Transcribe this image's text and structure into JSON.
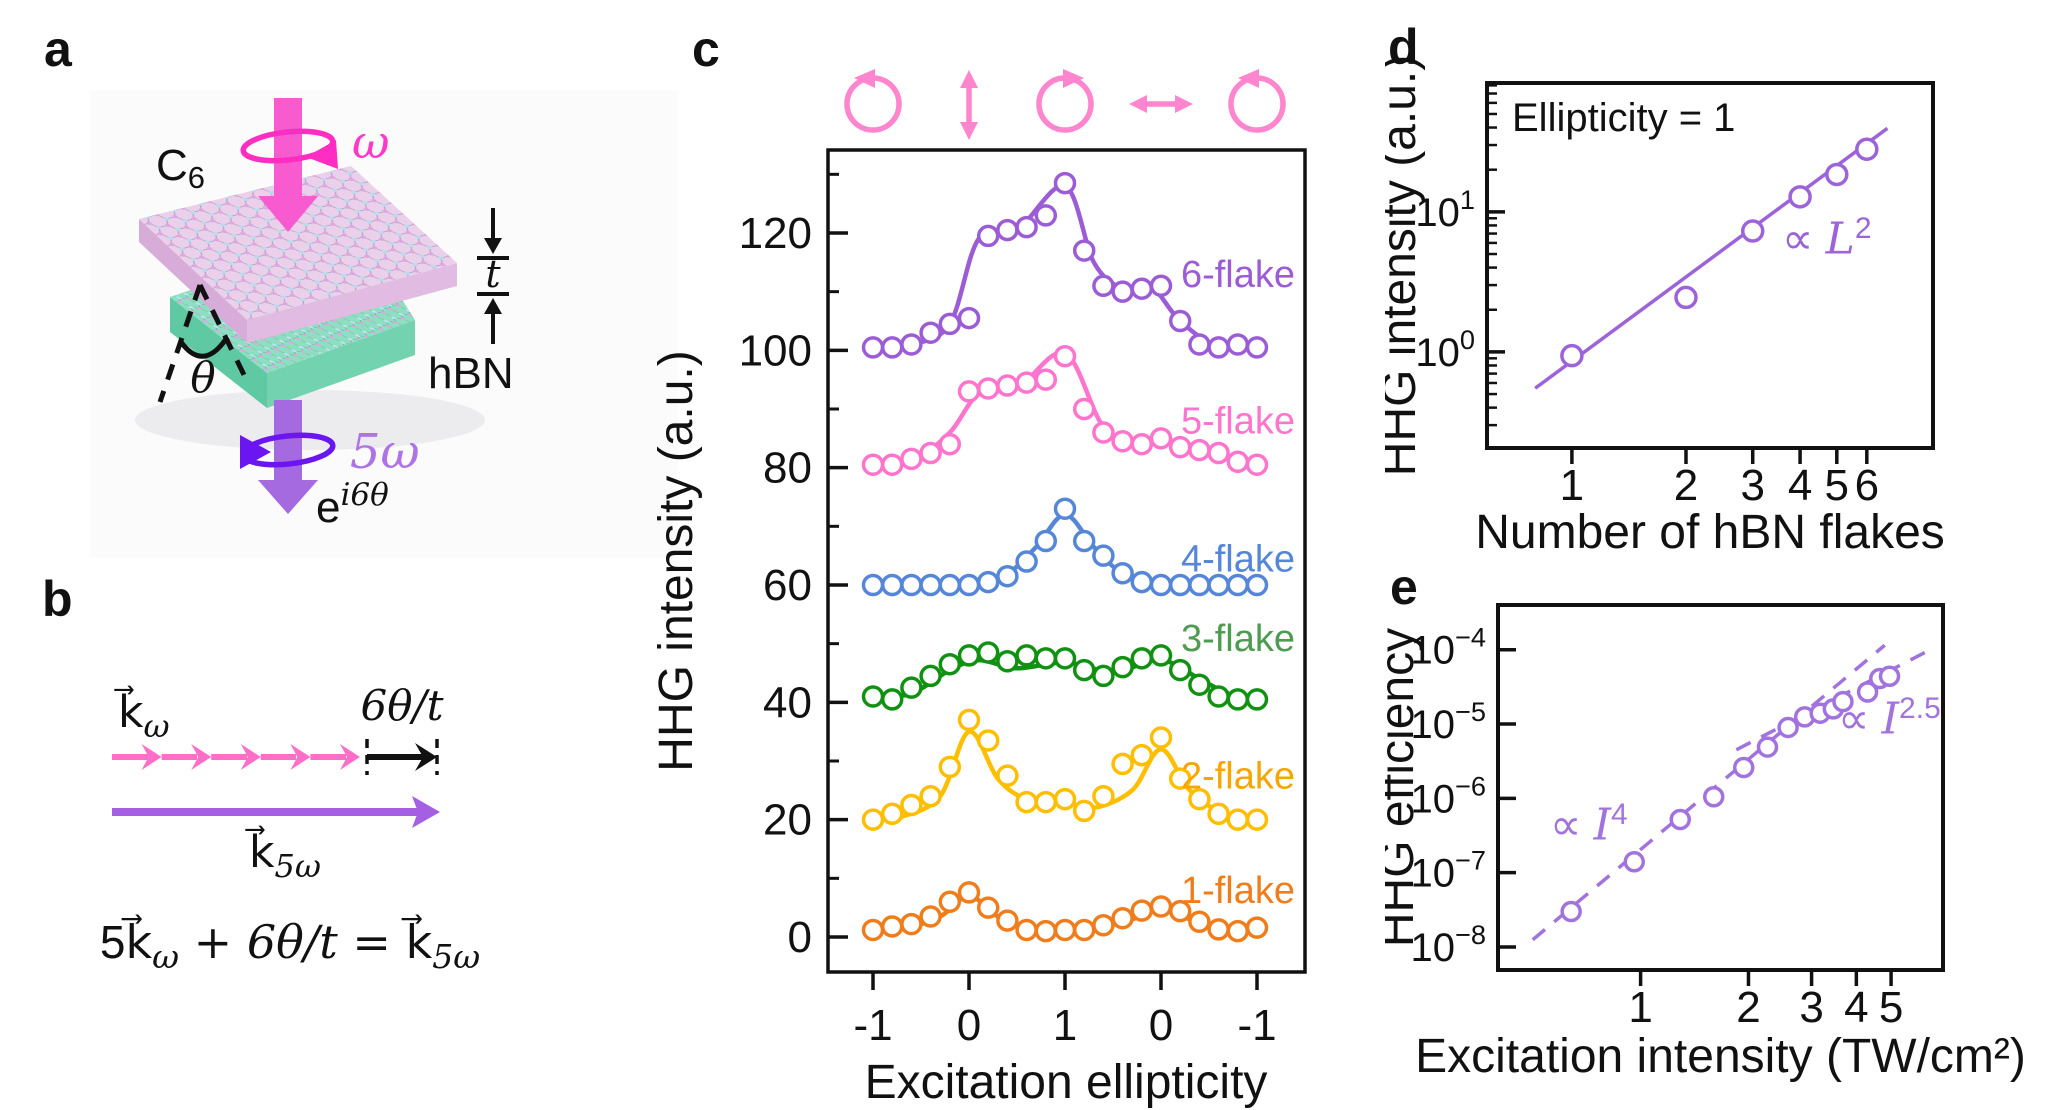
{
  "figure": {
    "panels": {
      "a": "a",
      "b": "b",
      "c": "c",
      "d": "d",
      "e": "e"
    }
  },
  "panel_a": {
    "c6_main": "C",
    "c6_sub": "6",
    "hbn_label": "hBN",
    "omega_label": "ω",
    "five_omega_label": "5ω",
    "phase_base": "e",
    "phase_sup": "i6θ",
    "theta_label": "θ",
    "thickness_label": "t",
    "colors": {
      "pump_pink": "#F75BCF",
      "loop_pink": "#FF2DC2",
      "omega_text": "#FF38C8",
      "slab_pink_top": "#EBD0EB",
      "slab_pink_left": "#D8ACD8",
      "slab_pink_right": "#E2BBE2",
      "slab_teal_top": "#8EDEC1",
      "slab_teal_left": "#5FC9A3",
      "slab_teal_right": "#73D2AF",
      "harmonic_purple": "#A569E0",
      "loop_purple": "#6B15F0",
      "five_omega_text": "#AE74E6",
      "atom_blue": "#B7DCF2",
      "atom_purple": "#DCA8E4",
      "bond_gray": "#8d8290"
    }
  },
  "panel_b": {
    "k_omega_base": "k⃗",
    "k_omega_sub": "ω",
    "k5_base": "k⃗",
    "k5_sub": "5ω",
    "phase_label": "6θ/t",
    "eq_p1": "5k⃗",
    "eq_s1": "ω",
    "eq_p2": " + 6θ/t = ",
    "eq_p3": "k⃗",
    "eq_s2": "5ω",
    "colors": {
      "k_pink": "#FF6EC7",
      "k_purple": "#A55FE3",
      "black": "#111111"
    }
  },
  "chart_data": [
    {
      "type": "line",
      "panel": "c",
      "xlabel": "Excitation ellipticity",
      "ylabel": "HHG intensity (a.u.)",
      "x_ticks": [
        {
          "u": 0,
          "label": "-1"
        },
        {
          "u": 1,
          "label": "0"
        },
        {
          "u": 2,
          "label": "1"
        },
        {
          "u": 3,
          "label": "0"
        },
        {
          "u": 4,
          "label": "-1"
        }
      ],
      "y_ticks": [
        0,
        20,
        40,
        60,
        80,
        100,
        120
      ],
      "y_minor": [
        10,
        30,
        50,
        70,
        90,
        110,
        130
      ],
      "ylim": [
        -6,
        134
      ],
      "icon_color": "#FF85CF",
      "polarization_icons": [
        "circular-left-icon",
        "linear-vertical-icon",
        "circular-right-icon",
        "linear-horizontal-icon",
        "circular-left-icon"
      ],
      "series": [
        {
          "name": "1-flake",
          "color": "#F07D1C",
          "label_color": "#F07D1C",
          "label_v": 8,
          "circles": [
            [
              0,
              1.2
            ],
            [
              0.2,
              1.8
            ],
            [
              0.4,
              2.2
            ],
            [
              0.6,
              3.5
            ],
            [
              0.8,
              6
            ],
            [
              1.0,
              7.6
            ],
            [
              1.2,
              5
            ],
            [
              1.4,
              2.8
            ],
            [
              1.6,
              1.2
            ],
            [
              1.8,
              1
            ],
            [
              2.0,
              1.2
            ],
            [
              2.2,
              1.2
            ],
            [
              2.4,
              2
            ],
            [
              2.6,
              3.2
            ],
            [
              2.8,
              4.5
            ],
            [
              3.0,
              5.2
            ],
            [
              3.2,
              4.4
            ],
            [
              3.4,
              2.6
            ],
            [
              3.6,
              1.3
            ],
            [
              3.8,
              1
            ],
            [
              4.0,
              1.6
            ]
          ],
          "curve": [
            [
              0,
              1
            ],
            [
              0.3,
              1.3
            ],
            [
              0.7,
              3.5
            ],
            [
              1.0,
              7
            ],
            [
              1.3,
              3.5
            ],
            [
              1.7,
              1.2
            ],
            [
              2.0,
              1
            ],
            [
              2.3,
              1.3
            ],
            [
              2.7,
              3
            ],
            [
              3.0,
              5
            ],
            [
              3.3,
              3
            ],
            [
              3.7,
              1.2
            ],
            [
              4.0,
              1.1
            ]
          ]
        },
        {
          "name": "2-flake",
          "color": "#FFBE00",
          "label_color": "#F7A600",
          "label_v": 27.5,
          "circles": [
            [
              0,
              20
            ],
            [
              0.2,
              21
            ],
            [
              0.4,
              22.5
            ],
            [
              0.6,
              24
            ],
            [
              0.8,
              29
            ],
            [
              1.0,
              37
            ],
            [
              1.2,
              33.5
            ],
            [
              1.4,
              27.5
            ],
            [
              1.6,
              23
            ],
            [
              1.8,
              23
            ],
            [
              2.0,
              23.5
            ],
            [
              2.2,
              21.5
            ],
            [
              2.4,
              24
            ],
            [
              2.6,
              29.5
            ],
            [
              2.8,
              31
            ],
            [
              3.0,
              34
            ],
            [
              3.2,
              27
            ],
            [
              3.4,
              23.5
            ],
            [
              3.6,
              21
            ],
            [
              3.8,
              20
            ],
            [
              4.0,
              20
            ]
          ],
          "curve": [
            [
              0,
              20
            ],
            [
              0.3,
              20.5
            ],
            [
              0.7,
              24
            ],
            [
              1.0,
              35
            ],
            [
              1.3,
              27
            ],
            [
              1.6,
              23.5
            ],
            [
              2.0,
              23
            ],
            [
              2.3,
              22
            ],
            [
              2.7,
              25
            ],
            [
              3.0,
              32
            ],
            [
              3.3,
              25
            ],
            [
              3.7,
              20.5
            ],
            [
              4.0,
              20
            ]
          ]
        },
        {
          "name": "3-flake",
          "color": "#119112",
          "label_color": "#4F9B51",
          "label_v": 51,
          "circles": [
            [
              0,
              41
            ],
            [
              0.2,
              40.5
            ],
            [
              0.4,
              42.5
            ],
            [
              0.6,
              44.5
            ],
            [
              0.8,
              46.5
            ],
            [
              1.0,
              48
            ],
            [
              1.2,
              48.5
            ],
            [
              1.4,
              47
            ],
            [
              1.6,
              48
            ],
            [
              1.8,
              47.5
            ],
            [
              2.0,
              47.5
            ],
            [
              2.2,
              45.5
            ],
            [
              2.4,
              44.5
            ],
            [
              2.6,
              46
            ],
            [
              2.8,
              47.5
            ],
            [
              3.0,
              48
            ],
            [
              3.2,
              45.5
            ],
            [
              3.4,
              43
            ],
            [
              3.6,
              41
            ],
            [
              3.8,
              40.5
            ],
            [
              4.0,
              40.5
            ]
          ],
          "curve": [
            [
              0,
              40.8
            ],
            [
              0.4,
              41.5
            ],
            [
              0.8,
              45.5
            ],
            [
              1.1,
              47.2
            ],
            [
              1.5,
              45.8
            ],
            [
              2.0,
              46.8
            ],
            [
              2.5,
              45.2
            ],
            [
              3.0,
              47.2
            ],
            [
              3.4,
              44
            ],
            [
              3.7,
              41.5
            ],
            [
              4.0,
              40.6
            ]
          ]
        },
        {
          "name": "4-flake",
          "color": "#5586D8",
          "label_color": "#5586D8",
          "label_v": 64.5,
          "circles": [
            [
              0,
              60
            ],
            [
              0.2,
              60
            ],
            [
              0.4,
              60
            ],
            [
              0.6,
              60
            ],
            [
              0.8,
              60
            ],
            [
              1.0,
              60
            ],
            [
              1.2,
              60.5
            ],
            [
              1.4,
              61.5
            ],
            [
              1.6,
              64
            ],
            [
              1.8,
              67.5
            ],
            [
              2.0,
              73
            ],
            [
              2.2,
              67.5
            ],
            [
              2.4,
              65
            ],
            [
              2.6,
              62
            ],
            [
              2.8,
              60.5
            ],
            [
              3.0,
              60
            ],
            [
              3.2,
              60
            ],
            [
              3.4,
              60
            ],
            [
              3.6,
              60
            ],
            [
              3.8,
              60
            ],
            [
              4.0,
              60
            ]
          ],
          "curve": [
            [
              0,
              60
            ],
            [
              0.6,
              60
            ],
            [
              1.0,
              60.2
            ],
            [
              1.4,
              62
            ],
            [
              1.7,
              66.5
            ],
            [
              2.0,
              72
            ],
            [
              2.3,
              66.5
            ],
            [
              2.6,
              62
            ],
            [
              3.0,
              60.2
            ],
            [
              3.4,
              60
            ],
            [
              4.0,
              60
            ]
          ]
        },
        {
          "name": "5-flake",
          "color": "#FF74CD",
          "label_color": "#FF74CD",
          "label_v": 88,
          "circles": [
            [
              0,
              80.5
            ],
            [
              0.2,
              80.5
            ],
            [
              0.4,
              81.5
            ],
            [
              0.6,
              82.5
            ],
            [
              0.8,
              84
            ],
            [
              1.0,
              93
            ],
            [
              1.2,
              93.5
            ],
            [
              1.4,
              94
            ],
            [
              1.6,
              94.5
            ],
            [
              1.8,
              95
            ],
            [
              2.0,
              99
            ],
            [
              2.2,
              90
            ],
            [
              2.4,
              86
            ],
            [
              2.6,
              84.5
            ],
            [
              2.8,
              84
            ],
            [
              3.0,
              85
            ],
            [
              3.2,
              83.5
            ],
            [
              3.4,
              83
            ],
            [
              3.6,
              82.5
            ],
            [
              3.8,
              81
            ],
            [
              4.0,
              80.5
            ]
          ],
          "curve": [
            [
              0,
              80.5
            ],
            [
              0.4,
              81
            ],
            [
              0.8,
              86
            ],
            [
              1.1,
              92.5
            ],
            [
              1.5,
              93.5
            ],
            [
              2.0,
              99.5
            ],
            [
              2.4,
              87
            ],
            [
              2.8,
              84
            ],
            [
              3.05,
              84.8
            ],
            [
              3.4,
              83
            ],
            [
              3.7,
              81.5
            ],
            [
              4.0,
              80.5
            ]
          ]
        },
        {
          "name": "6-flake",
          "color": "#9B5CD6",
          "label_color": "#9B5CD6",
          "label_v": 113,
          "circles": [
            [
              0,
              100.5
            ],
            [
              0.2,
              100.5
            ],
            [
              0.4,
              101
            ],
            [
              0.6,
              103
            ],
            [
              0.8,
              104.5
            ],
            [
              1.0,
              105.5
            ],
            [
              1.2,
              119.5
            ],
            [
              1.4,
              120.5
            ],
            [
              1.6,
              121
            ],
            [
              1.8,
              123
            ],
            [
              2.0,
              128.5
            ],
            [
              2.2,
              117
            ],
            [
              2.4,
              111
            ],
            [
              2.6,
              110
            ],
            [
              2.8,
              110.5
            ],
            [
              3.0,
              111
            ],
            [
              3.2,
              105
            ],
            [
              3.4,
              101
            ],
            [
              3.6,
              100.5
            ],
            [
              3.8,
              101
            ],
            [
              4.0,
              100.5
            ]
          ],
          "curve": [
            [
              0,
              100.3
            ],
            [
              0.4,
              101
            ],
            [
              0.8,
              104.5
            ],
            [
              1.1,
              119
            ],
            [
              1.5,
              120.5
            ],
            [
              2.0,
              128
            ],
            [
              2.3,
              115
            ],
            [
              2.6,
              110.5
            ],
            [
              2.9,
              110.8
            ],
            [
              3.2,
              105
            ],
            [
              3.6,
              100.5
            ],
            [
              4.0,
              100.4
            ]
          ]
        }
      ]
    },
    {
      "type": "scatter",
      "panel": "d",
      "xlabel": "Number of hBN flakes",
      "ylabel": "HHG intensity (a.u.)",
      "annotation": "Ellipticity = 1",
      "fit_label": {
        "prefix": "∝ ",
        "var": "L",
        "exp": "2"
      },
      "x_ticks": [
        1,
        2,
        3,
        4,
        5,
        6
      ],
      "y_tick_exponents": [
        0,
        1
      ],
      "xlim": [
        0.597,
        8.97
      ],
      "ylim": [
        0.206,
        83.2
      ],
      "points": [
        [
          1,
          0.94
        ],
        [
          2,
          2.45
        ],
        [
          3,
          7.3
        ],
        [
          4,
          12.8
        ],
        [
          5,
          18.5
        ],
        [
          6,
          28
        ]
      ],
      "fit_line": {
        "x": [
          0.8,
          6.8
        ],
        "y": [
          0.55,
          39.5
        ]
      },
      "color": "#9C64D8"
    },
    {
      "type": "scatter",
      "panel": "e",
      "xlabel": "Excitation intensity (TW/cm²)",
      "ylabel": "HHG efficiency",
      "x_ticks": [
        1,
        2,
        3,
        4,
        5
      ],
      "y_tick_exponents": [
        -8,
        -7,
        -6,
        -5,
        -4
      ],
      "xlim": [
        0.4,
        6.98
      ],
      "ylim": [
        4.9e-09,
        0.0004
      ],
      "points": [
        [
          0.64,
          3e-08
        ],
        [
          0.96,
          1.4e-07
        ],
        [
          1.29,
          5.2e-07
        ],
        [
          1.6,
          1.05e-06
        ],
        [
          1.94,
          2.6e-06
        ],
        [
          2.26,
          4.9e-06
        ],
        [
          2.58,
          9e-06
        ],
        [
          2.87,
          1.25e-05
        ],
        [
          3.17,
          1.4e-05
        ],
        [
          3.45,
          1.6e-05
        ],
        [
          3.67,
          2e-05
        ],
        [
          4.3,
          2.7e-05
        ],
        [
          4.65,
          4.1e-05
        ],
        [
          4.95,
          4.4e-05
        ]
      ],
      "guide_lines": [
        {
          "label": {
            "prefix": "∝ ",
            "var": "I",
            "exp": "4"
          },
          "x": [
            0.5,
            4.8
          ],
          "y": [
            1.25e-08,
            0.000115
          ]
        },
        {
          "label": {
            "prefix": "∝ ",
            "var": "I",
            "exp": "2.5"
          },
          "x": [
            1.85,
            6.3
          ],
          "y": [
            4.5e-06,
            9.5e-05
          ]
        }
      ],
      "color": "#A273DE"
    }
  ]
}
